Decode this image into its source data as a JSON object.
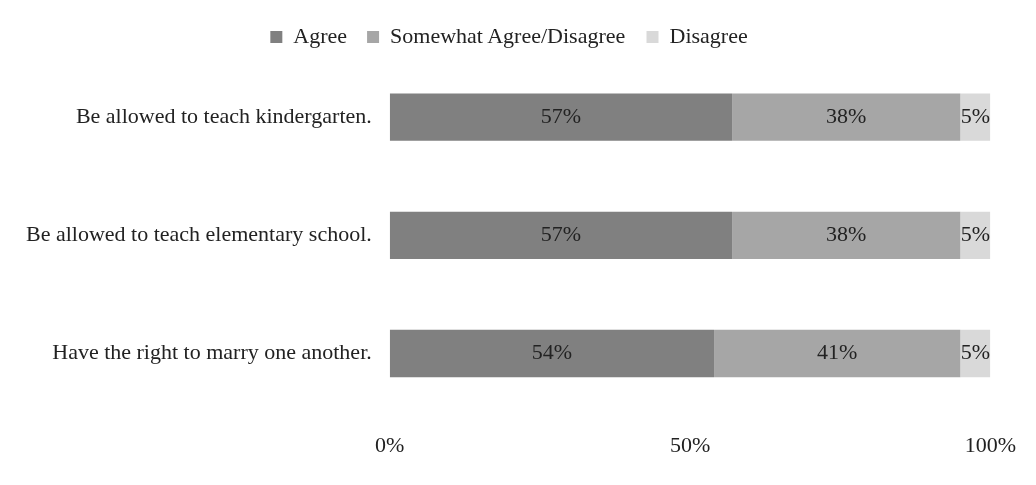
{
  "chart_data": {
    "type": "bar",
    "orientation": "horizontal",
    "stacked": true,
    "legend": "top",
    "categories": [
      "Be allowed to teach kindergarten.",
      "Be allowed to teach elementary school.",
      "Have the right to marry one another."
    ],
    "series": [
      {
        "name": "Agree",
        "color": "#808080",
        "values": [
          57,
          57,
          54
        ],
        "value_labels": [
          "57%",
          "57%",
          "54%"
        ]
      },
      {
        "name": "Somewhat Agree/Disagree",
        "color": "#a6a6a6",
        "values": [
          38,
          38,
          41
        ],
        "value_labels": [
          "38%",
          "38%",
          "41%"
        ]
      },
      {
        "name": "Disagree",
        "color": "#d9d9d9",
        "values": [
          5,
          5,
          5
        ],
        "value_labels": [
          "5%",
          "5%",
          "5%"
        ]
      }
    ],
    "xlim": [
      0,
      100
    ],
    "xticks": [
      {
        "value": 0,
        "label": "0%"
      },
      {
        "value": 50,
        "label": "50%"
      },
      {
        "value": 100,
        "label": "100%"
      }
    ],
    "grid": false
  }
}
